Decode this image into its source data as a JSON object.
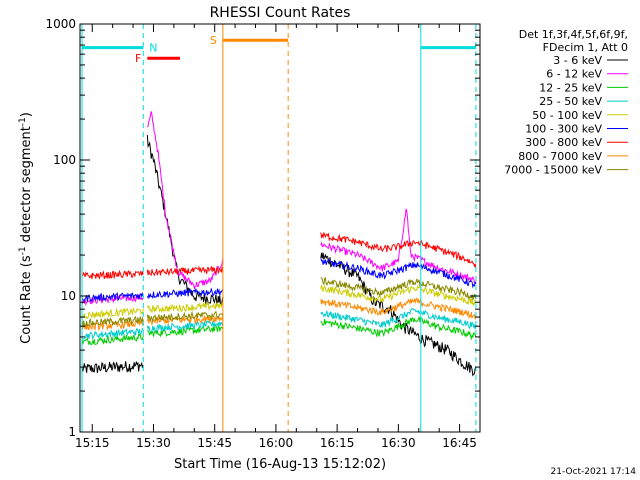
{
  "chart_data": {
    "type": "line",
    "title": "RHESSI Count Rates",
    "xlabel": "Start Time (16-Aug-13 15:12:02)",
    "ylabel_parts": [
      "Count Rate (s",
      "-1",
      " detector segment",
      "-1",
      ")"
    ],
    "ylabel": "Count Rate (s-1 detector segment-1)",
    "yscale": "log",
    "ylim": [
      1,
      1000
    ],
    "xlim_minutes_after_1500": [
      12,
      110
    ],
    "x_ticks": [
      {
        "label": "15:15",
        "t": 15
      },
      {
        "label": "15:30",
        "t": 30
      },
      {
        "label": "15:45",
        "t": 45
      },
      {
        "label": "16:00",
        "t": 60
      },
      {
        "label": "16:15",
        "t": 75
      },
      {
        "label": "16:30",
        "t": 90
      },
      {
        "label": "16:45",
        "t": 105
      }
    ],
    "y_ticks": [
      {
        "label": "1",
        "v": 1
      },
      {
        "label": "10",
        "v": 10
      },
      {
        "label": "100",
        "v": 100
      },
      {
        "label": "1000",
        "v": 1000
      }
    ],
    "legend": {
      "header": [
        "Det 1f,3f,4f,5f,6f,9f,",
        "FDecim 1, Att 0"
      ],
      "placement": "right"
    },
    "series": [
      {
        "name": "3 - 6 keV",
        "color": "#000000",
        "seg1": [
          [
            12.5,
            2.9
          ],
          [
            20,
            3.0
          ],
          [
            27.5,
            3.1
          ]
        ],
        "seg2": [
          [
            28.5,
            140
          ],
          [
            30,
            100
          ],
          [
            33,
            40
          ],
          [
            36,
            14
          ],
          [
            40,
            10
          ],
          [
            45,
            9.5
          ],
          [
            47,
            9.0
          ]
        ],
        "seg3": [
          [
            71,
            20
          ],
          [
            80,
            14
          ],
          [
            84,
            9
          ],
          [
            88,
            8
          ],
          [
            91,
            6
          ],
          [
            96,
            4.8
          ],
          [
            102,
            4.0
          ],
          [
            106,
            3.2
          ],
          [
            109,
            2.8
          ]
        ]
      },
      {
        "name": "6 - 12 keV",
        "color": "#ff00ff",
        "seg1": [
          [
            12.5,
            9.2
          ],
          [
            20,
            9.5
          ],
          [
            27.5,
            9.8
          ]
        ],
        "seg2": [
          [
            28.5,
            170
          ],
          [
            29.5,
            220
          ],
          [
            31,
            120
          ],
          [
            33,
            40
          ],
          [
            36,
            15
          ],
          [
            40,
            12
          ],
          [
            44,
            13
          ],
          [
            47,
            18
          ]
        ],
        "seg3": [
          [
            71,
            24
          ],
          [
            80,
            20
          ],
          [
            86,
            16
          ],
          [
            90,
            18
          ],
          [
            92,
            45
          ],
          [
            93,
            20
          ],
          [
            100,
            16
          ],
          [
            106,
            14
          ],
          [
            109,
            13
          ]
        ]
      },
      {
        "name": "12 - 25 keV",
        "color": "#00cc00",
        "seg1": [
          [
            12.5,
            4.6
          ],
          [
            20,
            4.8
          ],
          [
            27.5,
            5.0
          ]
        ],
        "seg2": [
          [
            28.5,
            5.3
          ],
          [
            37,
            5.5
          ],
          [
            47,
            5.8
          ]
        ],
        "seg3": [
          [
            71,
            6.5
          ],
          [
            80,
            5.8
          ],
          [
            86,
            5.3
          ],
          [
            90,
            6.0
          ],
          [
            94,
            6.8
          ],
          [
            100,
            5.9
          ],
          [
            106,
            5.4
          ],
          [
            109,
            5.0
          ]
        ]
      },
      {
        "name": "25 - 50 keV",
        "color": "#00cccc",
        "seg1": [
          [
            12.5,
            5.1
          ],
          [
            20,
            5.3
          ],
          [
            27.5,
            5.5
          ]
        ],
        "seg2": [
          [
            28.5,
            5.8
          ],
          [
            37,
            6.0
          ],
          [
            47,
            6.3
          ]
        ],
        "seg3": [
          [
            71,
            7.5
          ],
          [
            80,
            6.7
          ],
          [
            86,
            6.1
          ],
          [
            90,
            6.9
          ],
          [
            94,
            7.8
          ],
          [
            100,
            6.9
          ],
          [
            106,
            6.4
          ],
          [
            109,
            5.9
          ]
        ]
      },
      {
        "name": "50 - 100 keV",
        "color": "#cccc00",
        "seg1": [
          [
            12.5,
            7.2
          ],
          [
            20,
            7.5
          ],
          [
            27.5,
            7.8
          ]
        ],
        "seg2": [
          [
            28.5,
            8.0
          ],
          [
            37,
            8.2
          ],
          [
            47,
            8.5
          ]
        ],
        "seg3": [
          [
            71,
            11.5
          ],
          [
            80,
            10.2
          ],
          [
            86,
            9.4
          ],
          [
            90,
            10.5
          ],
          [
            94,
            11.5
          ],
          [
            100,
            10.3
          ],
          [
            106,
            9.4
          ],
          [
            109,
            8.8
          ]
        ]
      },
      {
        "name": "100 - 300 keV",
        "color": "#0000ff",
        "seg1": [
          [
            12.5,
            9.6
          ],
          [
            20,
            9.9
          ],
          [
            27.5,
            10.1
          ]
        ],
        "seg2": [
          [
            28.5,
            10.2
          ],
          [
            37,
            10.5
          ],
          [
            47,
            10.8
          ]
        ],
        "seg3": [
          [
            71,
            18
          ],
          [
            80,
            16
          ],
          [
            86,
            14
          ],
          [
            90,
            15.5
          ],
          [
            94,
            17
          ],
          [
            100,
            15
          ],
          [
            106,
            13
          ],
          [
            109,
            12
          ]
        ]
      },
      {
        "name": "300 - 800 keV",
        "color": "#ff0000",
        "seg1": [
          [
            12.5,
            14
          ],
          [
            20,
            14.3
          ],
          [
            27.5,
            14.6
          ]
        ],
        "seg2": [
          [
            28.5,
            14.8
          ],
          [
            37,
            15.2
          ],
          [
            47,
            15.6
          ]
        ],
        "seg3": [
          [
            71,
            28
          ],
          [
            80,
            25
          ],
          [
            86,
            22
          ],
          [
            90,
            23
          ],
          [
            94,
            25
          ],
          [
            100,
            22
          ],
          [
            106,
            19
          ],
          [
            109,
            17
          ]
        ]
      },
      {
        "name": "800 - 7000 keV",
        "color": "#ff8800",
        "seg1": [
          [
            12.5,
            5.9
          ],
          [
            20,
            6.1
          ],
          [
            27.5,
            6.3
          ]
        ],
        "seg2": [
          [
            28.5,
            6.5
          ],
          [
            37,
            6.7
          ],
          [
            47,
            6.9
          ]
        ],
        "seg3": [
          [
            71,
            9.2
          ],
          [
            80,
            8.2
          ],
          [
            86,
            7.6
          ],
          [
            90,
            8.4
          ],
          [
            94,
            9.2
          ],
          [
            100,
            8.3
          ],
          [
            106,
            7.6
          ],
          [
            109,
            7.1
          ]
        ]
      },
      {
        "name": "7000 - 15000 keV",
        "color": "#888800",
        "seg1": [
          [
            12.5,
            6.3
          ],
          [
            20,
            6.5
          ],
          [
            27.5,
            6.7
          ]
        ],
        "seg2": [
          [
            28.5,
            6.9
          ],
          [
            37,
            7.1
          ],
          [
            47,
            7.3
          ]
        ],
        "seg3": [
          [
            71,
            13
          ],
          [
            80,
            11.5
          ],
          [
            86,
            10.5
          ],
          [
            90,
            11.7
          ],
          [
            94,
            12.8
          ],
          [
            100,
            11.5
          ],
          [
            106,
            10.5
          ],
          [
            109,
            9.8
          ]
        ]
      }
    ],
    "flag_bars": [
      {
        "label": "N",
        "color": "#00dddd",
        "ranges": [
          [
            12.5,
            27.5
          ],
          [
            95.5,
            109
          ]
        ],
        "level": 670
      },
      {
        "label": "F",
        "color": "#ff0000",
        "ranges": [
          [
            28.5,
            36.5
          ]
        ],
        "level": 560
      },
      {
        "label": "S",
        "color": "#ff8800",
        "ranges": [
          [
            47,
            63
          ]
        ],
        "level": 760
      }
    ],
    "vertical_markers": [
      {
        "t": 12.5,
        "color": "#00dddd",
        "style": "solid"
      },
      {
        "t": 27.5,
        "color": "#00dddd",
        "style": "dashed"
      },
      {
        "t": 47,
        "color": "#ff8800",
        "style": "solid"
      },
      {
        "t": 63,
        "color": "#ff8800",
        "style": "dashed"
      },
      {
        "t": 95.5,
        "color": "#00dddd",
        "style": "solid"
      },
      {
        "t": 109,
        "color": "#00dddd",
        "style": "dashed"
      }
    ],
    "footer_timestamp": "21-Oct-2021 17:14"
  }
}
